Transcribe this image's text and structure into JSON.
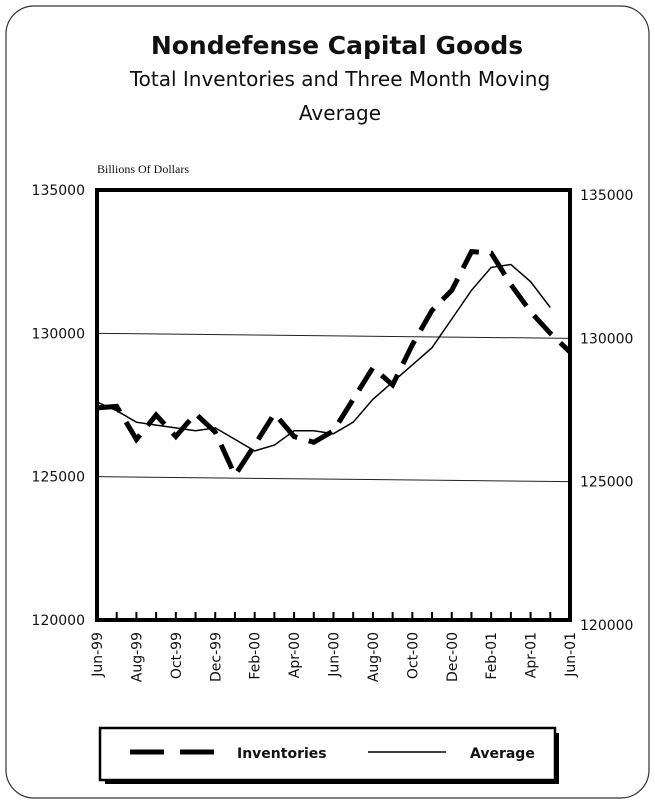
{
  "chart_data": {
    "type": "line",
    "title": "Nondefense Capital Goods",
    "subtitle": "Total Inventories and Three Month Moving Average",
    "y_axis_label": "Billions Of Dollars",
    "categories": [
      "Jun-99",
      null,
      "Aug-99",
      null,
      "Oct-99",
      null,
      "Dec-99",
      null,
      "Feb-00",
      null,
      "Apr-00",
      null,
      "Jun-00",
      null,
      "Aug-00",
      null,
      "Oct-00",
      null,
      "Dec-00",
      null,
      "Feb-01",
      null,
      "Apr-01",
      null,
      "Jun-01"
    ],
    "series": [
      {
        "name": "Inventories",
        "color": "#000000",
        "style": "dashed",
        "values": [
          127400,
          127450,
          126300,
          127150,
          126400,
          127200,
          126550,
          125050,
          126100,
          127200,
          126400,
          126200,
          126600,
          127700,
          128800,
          128200,
          129600,
          130800,
          131500,
          132850,
          132800,
          131700,
          130750,
          130000,
          129350
        ]
      },
      {
        "name": "Average",
        "color": "#000000",
        "style": "solid",
        "values": [
          127600,
          127300,
          126900,
          126800,
          126700,
          126600,
          126700,
          126300,
          125900,
          126100,
          126600,
          126600,
          126500,
          126900,
          127700,
          128300,
          128900,
          129500,
          130500,
          131500,
          132300,
          132400,
          131800,
          130900,
          null
        ]
      }
    ],
    "ylim": [
      120000,
      135000
    ],
    "yticks": [
      120000,
      125000,
      130000,
      135000
    ],
    "y2lim": [
      120000,
      135000
    ],
    "y2ticks": [
      120000,
      125000,
      130000,
      135000
    ],
    "grid": true,
    "legend": "bottom"
  }
}
